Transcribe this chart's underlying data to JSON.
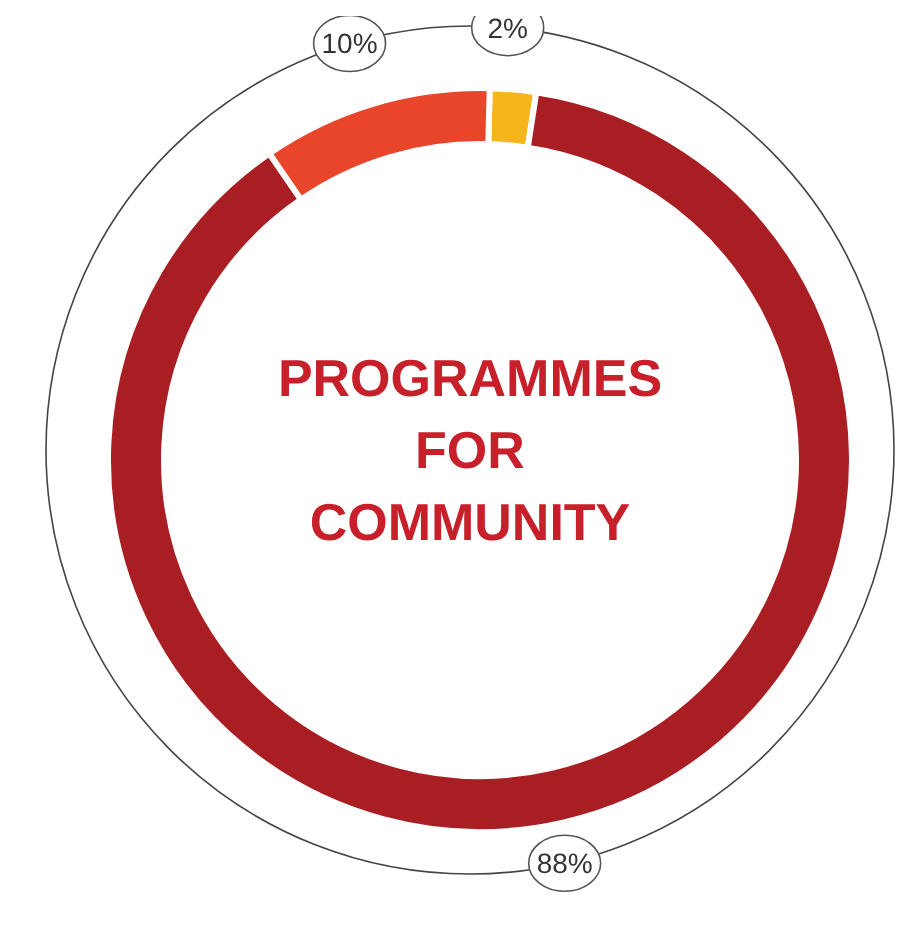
{
  "chart_data": {
    "type": "donut",
    "title": "PROGRAMMES FOR COMMUNITY",
    "categories": [
      null,
      null,
      null
    ],
    "values": [
      2,
      88,
      10
    ],
    "colors": [
      "#f5b51b",
      "#a91e22",
      "#e8452a"
    ],
    "value_labels": [
      "2%",
      "88%",
      "10%"
    ]
  }
}
